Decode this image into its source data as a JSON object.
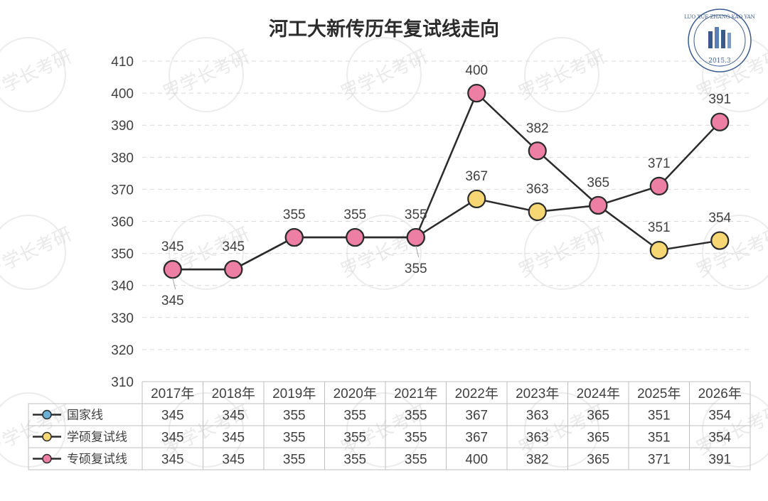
{
  "chart_data": {
    "type": "line",
    "title": "河工大新传历年复试线走向",
    "categories": [
      "2017年",
      "2018年",
      "2019年",
      "2020年",
      "2021年",
      "2022年",
      "2023年",
      "2024年",
      "2025年",
      "2026年"
    ],
    "ylim": [
      310,
      410
    ],
    "yticks": [
      410,
      400,
      390,
      380,
      370,
      360,
      350,
      340,
      330,
      320,
      310
    ],
    "grid": "horizontal dashed",
    "legend": "data table below chart",
    "series": [
      {
        "name": "国家线",
        "color": "#6baed6",
        "values": [
          345,
          345,
          355,
          355,
          355,
          367,
          363,
          365,
          351,
          354
        ],
        "show_line": false
      },
      {
        "name": "学硕复试线",
        "color": "#f7d774",
        "values": [
          345,
          345,
          355,
          355,
          355,
          367,
          363,
          365,
          351,
          354
        ],
        "show_line": true
      },
      {
        "name": "专硕复试线",
        "color": "#ec7fa3",
        "values": [
          345,
          345,
          355,
          355,
          355,
          400,
          382,
          365,
          371,
          391
        ],
        "show_line": true
      }
    ],
    "data_labels": {
      "学硕复试线": [
        "345",
        "345",
        "355",
        "355",
        "355",
        "367",
        "363",
        "365",
        "351",
        "354"
      ],
      "专硕复试线": [
        "345",
        "345",
        "355",
        "355",
        "355",
        "400",
        "382",
        "365",
        "371",
        "391"
      ]
    }
  },
  "watermark": {
    "text": "罗学长考研",
    "badge_text": "LUO XUE ZHANG KAO YAN",
    "badge_date": "2015.3"
  }
}
